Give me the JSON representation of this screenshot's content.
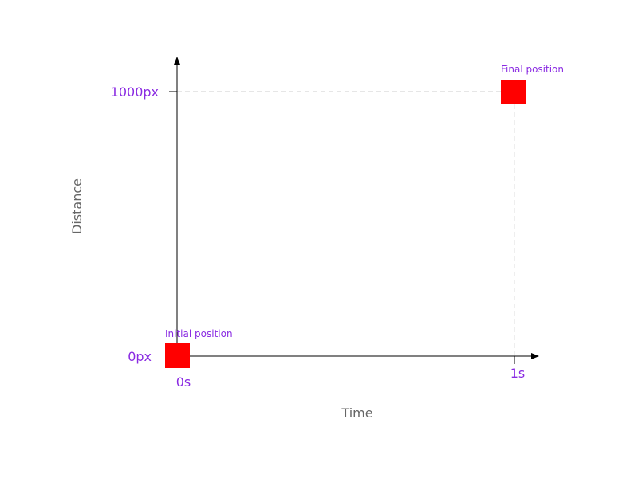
{
  "x_axis": {
    "label": "Time",
    "ticks": [
      "0s",
      "1s"
    ]
  },
  "y_axis": {
    "label": "Distance",
    "ticks": [
      "0px",
      "1000px"
    ]
  },
  "annotations": {
    "initial": "Initial position",
    "final": "Final position"
  },
  "colors": {
    "label": "#8a2be2",
    "box": "#ff0000",
    "axis": "#000000",
    "axis_title": "#666666",
    "guide": "#cccccc"
  }
}
